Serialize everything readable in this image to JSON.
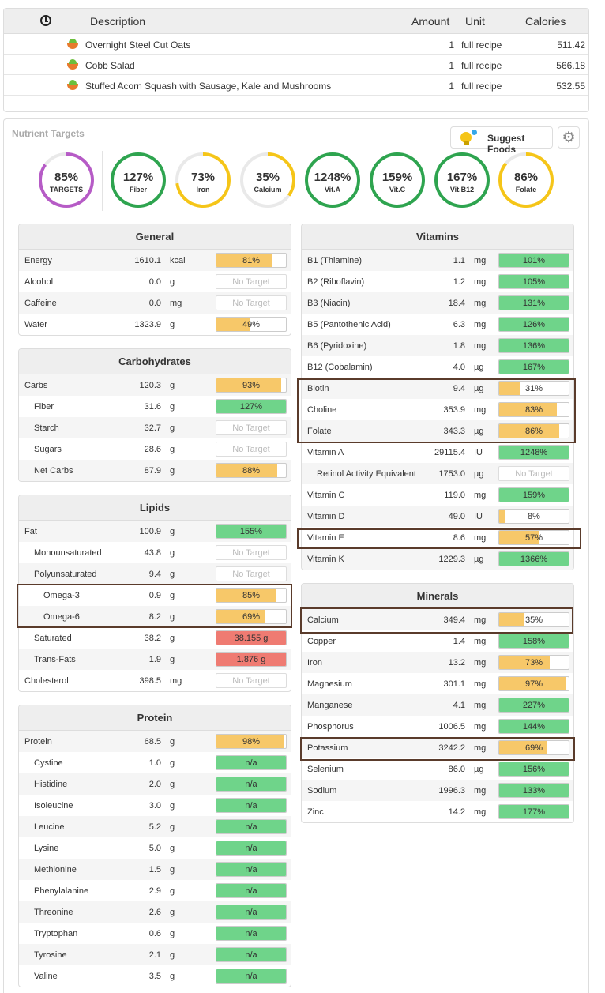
{
  "diary": {
    "headers": {
      "description": "Description",
      "amount": "Amount",
      "unit": "Unit",
      "calories": "Calories"
    },
    "clock_icon": "clock-icon",
    "rows": [
      {
        "name": "Overnight Steel Cut Oats",
        "amount": "1",
        "unit": "full recipe",
        "calories": "511.42"
      },
      {
        "name": "Cobb Salad",
        "amount": "1",
        "unit": "full recipe",
        "calories": "566.18"
      },
      {
        "name": "Stuffed Acorn Squash with Sausage, Kale and Mushrooms",
        "amount": "1",
        "unit": "full recipe",
        "calories": "532.55"
      }
    ]
  },
  "targets": {
    "title": "Nutrient Targets",
    "suggest_label": "Suggest Foods",
    "colors": {
      "purple": "#b65bc6",
      "green": "#2ea44f",
      "yellow": "#f5c518",
      "track": "#e9e9e9",
      "bar_yellow": "#f7c869",
      "bar_green": "#6fd48a",
      "bar_red": "#ef7b72"
    },
    "rings": [
      {
        "value": "85%",
        "label": "TARGETS",
        "pct": 85,
        "color": "purple"
      },
      {
        "value": "127%",
        "label": "Fiber",
        "pct": 100,
        "color": "green"
      },
      {
        "value": "73%",
        "label": "Iron",
        "pct": 73,
        "color": "yellow"
      },
      {
        "value": "35%",
        "label": "Calcium",
        "pct": 35,
        "color": "yellow"
      },
      {
        "value": "1248%",
        "label": "Vit.A",
        "pct": 100,
        "color": "green"
      },
      {
        "value": "159%",
        "label": "Vit.C",
        "pct": 100,
        "color": "green"
      },
      {
        "value": "167%",
        "label": "Vit.B12",
        "pct": 100,
        "color": "green"
      },
      {
        "value": "86%",
        "label": "Folate",
        "pct": 86,
        "color": "yellow"
      }
    ]
  },
  "general": {
    "title": "General",
    "rows": [
      {
        "name": "Energy",
        "value": "1610.1",
        "unit": "kcal",
        "bar": "81%",
        "fill": 81,
        "color": "bar_yellow"
      },
      {
        "name": "Alcohol",
        "value": "0.0",
        "unit": "g",
        "bar": "No Target",
        "fill": 0,
        "color": "none"
      },
      {
        "name": "Caffeine",
        "value": "0.0",
        "unit": "mg",
        "bar": "No Target",
        "fill": 0,
        "color": "none"
      },
      {
        "name": "Water",
        "value": "1323.9",
        "unit": "g",
        "bar": "49%",
        "fill": 49,
        "color": "bar_yellow"
      }
    ]
  },
  "carbs": {
    "title": "Carbohydrates",
    "rows": [
      {
        "name": "Carbs",
        "value": "120.3",
        "unit": "g",
        "bar": "93%",
        "fill": 93,
        "color": "bar_yellow",
        "indent": 0
      },
      {
        "name": "Fiber",
        "value": "31.6",
        "unit": "g",
        "bar": "127%",
        "fill": 100,
        "color": "bar_green",
        "indent": 1
      },
      {
        "name": "Starch",
        "value": "32.7",
        "unit": "g",
        "bar": "No Target",
        "fill": 0,
        "color": "none",
        "indent": 1
      },
      {
        "name": "Sugars",
        "value": "28.6",
        "unit": "g",
        "bar": "No Target",
        "fill": 0,
        "color": "none",
        "indent": 1
      },
      {
        "name": "Net Carbs",
        "value": "87.9",
        "unit": "g",
        "bar": "88%",
        "fill": 88,
        "color": "bar_yellow",
        "indent": 1
      }
    ]
  },
  "lipids": {
    "title": "Lipids",
    "rows": [
      {
        "name": "Fat",
        "value": "100.9",
        "unit": "g",
        "bar": "155%",
        "fill": 100,
        "color": "bar_green",
        "indent": 0
      },
      {
        "name": "Monounsaturated",
        "value": "43.8",
        "unit": "g",
        "bar": "No Target",
        "fill": 0,
        "color": "none",
        "indent": 1
      },
      {
        "name": "Polyunsaturated",
        "value": "9.4",
        "unit": "g",
        "bar": "No Target",
        "fill": 0,
        "color": "none",
        "indent": 1
      },
      {
        "name": "Omega-3",
        "value": "0.9",
        "unit": "g",
        "bar": "85%",
        "fill": 85,
        "color": "bar_yellow",
        "indent": 2
      },
      {
        "name": "Omega-6",
        "value": "8.2",
        "unit": "g",
        "bar": "69%",
        "fill": 69,
        "color": "bar_yellow",
        "indent": 2
      },
      {
        "name": "Saturated",
        "value": "38.2",
        "unit": "g",
        "bar": "38.155 g",
        "fill": 100,
        "color": "bar_red",
        "indent": 1
      },
      {
        "name": "Trans-Fats",
        "value": "1.9",
        "unit": "g",
        "bar": "1.876 g",
        "fill": 100,
        "color": "bar_red",
        "indent": 1
      },
      {
        "name": "Cholesterol",
        "value": "398.5",
        "unit": "mg",
        "bar": "No Target",
        "fill": 0,
        "color": "none",
        "indent": 0
      }
    ]
  },
  "protein": {
    "title": "Protein",
    "rows": [
      {
        "name": "Protein",
        "value": "68.5",
        "unit": "g",
        "bar": "98%",
        "fill": 98,
        "color": "bar_yellow",
        "indent": 0
      },
      {
        "name": "Cystine",
        "value": "1.0",
        "unit": "g",
        "bar": "n/a",
        "fill": 100,
        "color": "bar_green",
        "indent": 1
      },
      {
        "name": "Histidine",
        "value": "2.0",
        "unit": "g",
        "bar": "n/a",
        "fill": 100,
        "color": "bar_green",
        "indent": 1
      },
      {
        "name": "Isoleucine",
        "value": "3.0",
        "unit": "g",
        "bar": "n/a",
        "fill": 100,
        "color": "bar_green",
        "indent": 1
      },
      {
        "name": "Leucine",
        "value": "5.2",
        "unit": "g",
        "bar": "n/a",
        "fill": 100,
        "color": "bar_green",
        "indent": 1
      },
      {
        "name": "Lysine",
        "value": "5.0",
        "unit": "g",
        "bar": "n/a",
        "fill": 100,
        "color": "bar_green",
        "indent": 1
      },
      {
        "name": "Methionine",
        "value": "1.5",
        "unit": "g",
        "bar": "n/a",
        "fill": 100,
        "color": "bar_green",
        "indent": 1
      },
      {
        "name": "Phenylalanine",
        "value": "2.9",
        "unit": "g",
        "bar": "n/a",
        "fill": 100,
        "color": "bar_green",
        "indent": 1
      },
      {
        "name": "Threonine",
        "value": "2.6",
        "unit": "g",
        "bar": "n/a",
        "fill": 100,
        "color": "bar_green",
        "indent": 1
      },
      {
        "name": "Tryptophan",
        "value": "0.6",
        "unit": "g",
        "bar": "n/a",
        "fill": 100,
        "color": "bar_green",
        "indent": 1
      },
      {
        "name": "Tyrosine",
        "value": "2.1",
        "unit": "g",
        "bar": "n/a",
        "fill": 100,
        "color": "bar_green",
        "indent": 1
      },
      {
        "name": "Valine",
        "value": "3.5",
        "unit": "g",
        "bar": "n/a",
        "fill": 100,
        "color": "bar_green",
        "indent": 1
      }
    ]
  },
  "vitamins": {
    "title": "Vitamins",
    "rows": [
      {
        "name": "B1 (Thiamine)",
        "value": "1.1",
        "unit": "mg",
        "bar": "101%",
        "fill": 100,
        "color": "bar_green",
        "indent": 0
      },
      {
        "name": "B2 (Riboflavin)",
        "value": "1.2",
        "unit": "mg",
        "bar": "105%",
        "fill": 100,
        "color": "bar_green",
        "indent": 0
      },
      {
        "name": "B3 (Niacin)",
        "value": "18.4",
        "unit": "mg",
        "bar": "131%",
        "fill": 100,
        "color": "bar_green",
        "indent": 0
      },
      {
        "name": "B5 (Pantothenic Acid)",
        "value": "6.3",
        "unit": "mg",
        "bar": "126%",
        "fill": 100,
        "color": "bar_green",
        "indent": 0
      },
      {
        "name": "B6 (Pyridoxine)",
        "value": "1.8",
        "unit": "mg",
        "bar": "136%",
        "fill": 100,
        "color": "bar_green",
        "indent": 0
      },
      {
        "name": "B12 (Cobalamin)",
        "value": "4.0",
        "unit": "µg",
        "bar": "167%",
        "fill": 100,
        "color": "bar_green",
        "indent": 0
      },
      {
        "name": "Biotin",
        "value": "9.4",
        "unit": "µg",
        "bar": "31%",
        "fill": 31,
        "color": "bar_yellow",
        "indent": 0
      },
      {
        "name": "Choline",
        "value": "353.9",
        "unit": "mg",
        "bar": "83%",
        "fill": 83,
        "color": "bar_yellow",
        "indent": 0
      },
      {
        "name": "Folate",
        "value": "343.3",
        "unit": "µg",
        "bar": "86%",
        "fill": 86,
        "color": "bar_yellow",
        "indent": 0
      },
      {
        "name": "Vitamin A",
        "value": "29115.4",
        "unit": "IU",
        "bar": "1248%",
        "fill": 100,
        "color": "bar_green",
        "indent": 0
      },
      {
        "name": "Retinol Activity Equivalent",
        "value": "1753.0",
        "unit": "µg",
        "bar": "No Target",
        "fill": 0,
        "color": "none",
        "indent": 1
      },
      {
        "name": "Vitamin C",
        "value": "119.0",
        "unit": "mg",
        "bar": "159%",
        "fill": 100,
        "color": "bar_green",
        "indent": 0
      },
      {
        "name": "Vitamin D",
        "value": "49.0",
        "unit": "IU",
        "bar": "8%",
        "fill": 8,
        "color": "bar_yellow",
        "indent": 0
      },
      {
        "name": "Vitamin E",
        "value": "8.6",
        "unit": "mg",
        "bar": "57%",
        "fill": 57,
        "color": "bar_yellow",
        "indent": 0
      },
      {
        "name": "Vitamin K",
        "value": "1229.3",
        "unit": "µg",
        "bar": "1366%",
        "fill": 100,
        "color": "bar_green",
        "indent": 0
      }
    ]
  },
  "minerals": {
    "title": "Minerals",
    "rows": [
      {
        "name": "Calcium",
        "value": "349.4",
        "unit": "mg",
        "bar": "35%",
        "fill": 35,
        "color": "bar_yellow",
        "indent": 0
      },
      {
        "name": "Copper",
        "value": "1.4",
        "unit": "mg",
        "bar": "158%",
        "fill": 100,
        "color": "bar_green",
        "indent": 0
      },
      {
        "name": "Iron",
        "value": "13.2",
        "unit": "mg",
        "bar": "73%",
        "fill": 73,
        "color": "bar_yellow",
        "indent": 0
      },
      {
        "name": "Magnesium",
        "value": "301.1",
        "unit": "mg",
        "bar": "97%",
        "fill": 97,
        "color": "bar_yellow",
        "indent": 0
      },
      {
        "name": "Manganese",
        "value": "4.1",
        "unit": "mg",
        "bar": "227%",
        "fill": 100,
        "color": "bar_green",
        "indent": 0
      },
      {
        "name": "Phosphorus",
        "value": "1006.5",
        "unit": "mg",
        "bar": "144%",
        "fill": 100,
        "color": "bar_green",
        "indent": 0
      },
      {
        "name": "Potassium",
        "value": "3242.2",
        "unit": "mg",
        "bar": "69%",
        "fill": 69,
        "color": "bar_yellow",
        "indent": 0
      },
      {
        "name": "Selenium",
        "value": "86.0",
        "unit": "µg",
        "bar": "156%",
        "fill": 100,
        "color": "bar_green",
        "indent": 0
      },
      {
        "name": "Sodium",
        "value": "1996.3",
        "unit": "mg",
        "bar": "133%",
        "fill": 100,
        "color": "bar_green",
        "indent": 0
      },
      {
        "name": "Zinc",
        "value": "14.2",
        "unit": "mg",
        "bar": "177%",
        "fill": 100,
        "color": "bar_green",
        "indent": 0
      }
    ]
  }
}
